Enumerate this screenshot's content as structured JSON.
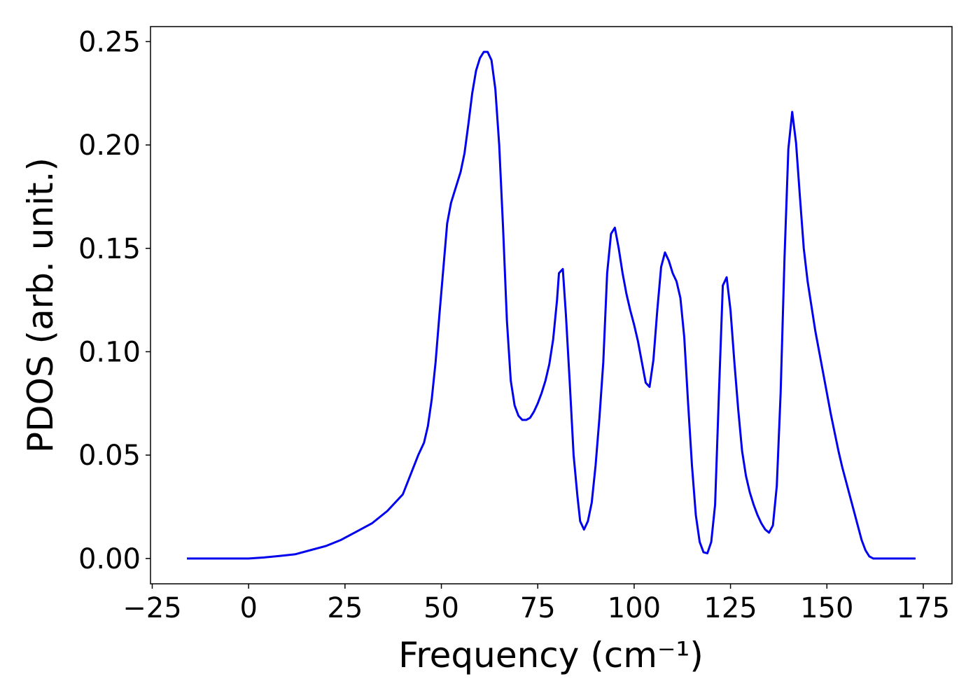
{
  "chart_data": {
    "type": "line",
    "x_label": "Frequency (cm⁻¹)",
    "y_label": "PDOS (arb. unit.)",
    "xlim": [
      -25.45,
      182.45
    ],
    "ylim": [
      -0.01225,
      0.25725
    ],
    "xticks": [
      {
        "value": -25,
        "label": "−25"
      },
      0,
      25,
      50,
      75,
      100,
      125,
      150,
      175
    ],
    "yticks": [
      {
        "value": 0,
        "label": "0.00"
      },
      {
        "value": 0.05,
        "label": "0.05"
      },
      {
        "value": 0.1,
        "label": "0.10"
      },
      {
        "value": 0.15,
        "label": "0.15"
      },
      {
        "value": 0.2,
        "label": "0.20"
      },
      {
        "value": 0.25,
        "label": "0.25"
      }
    ],
    "grid": false,
    "series": [
      {
        "color": "#0000ee",
        "x": [
          -16,
          -10,
          0,
          4,
          8,
          12,
          16,
          20,
          24,
          28,
          32,
          36,
          40,
          44,
          45.5,
          46.5,
          47.5,
          48.5,
          49.5,
          50.5,
          51.5,
          52.5,
          53.5,
          55,
          56,
          57,
          58,
          59,
          60,
          61,
          62,
          63,
          64,
          65,
          66,
          67,
          68,
          69,
          70,
          71,
          72,
          73,
          74,
          75,
          76,
          77,
          78,
          79,
          80,
          80.5,
          81.5,
          82.3,
          83.3,
          84.3,
          85.3,
          86,
          87,
          88,
          89,
          90,
          91,
          92,
          93,
          94,
          95,
          96,
          97,
          98,
          99,
          100,
          101,
          102,
          103,
          104,
          105,
          106,
          107,
          108,
          109,
          110,
          111,
          112,
          113,
          114,
          115,
          116,
          117,
          118,
          119,
          120,
          121,
          122,
          123,
          124,
          125,
          126,
          127,
          128,
          129,
          130,
          131,
          132,
          133,
          134,
          135,
          136,
          137,
          138,
          139,
          140,
          141,
          142,
          143,
          144,
          145,
          146,
          147,
          148,
          149,
          150,
          151,
          152,
          153,
          154,
          155,
          156,
          157,
          158,
          159,
          160,
          161,
          162,
          165,
          170,
          173
        ],
        "values": [
          0,
          0,
          0,
          0.0005,
          0.0012,
          0.002,
          0.004,
          0.006,
          0.009,
          0.013,
          0.017,
          0.023,
          0.031,
          0.05,
          0.056,
          0.064,
          0.077,
          0.095,
          0.118,
          0.14,
          0.162,
          0.172,
          0.178,
          0.187,
          0.196,
          0.21,
          0.225,
          0.236,
          0.242,
          0.245,
          0.245,
          0.241,
          0.227,
          0.2,
          0.16,
          0.115,
          0.086,
          0.074,
          0.069,
          0.067,
          0.067,
          0.068,
          0.071,
          0.075,
          0.08,
          0.086,
          0.094,
          0.106,
          0.125,
          0.138,
          0.14,
          0.118,
          0.085,
          0.05,
          0.03,
          0.018,
          0.014,
          0.018,
          0.027,
          0.045,
          0.068,
          0.095,
          0.138,
          0.157,
          0.16,
          0.15,
          0.138,
          0.128,
          0.12,
          0.113,
          0.105,
          0.095,
          0.085,
          0.083,
          0.096,
          0.12,
          0.141,
          0.148,
          0.144,
          0.138,
          0.134,
          0.126,
          0.107,
          0.075,
          0.045,
          0.021,
          0.008,
          0.003,
          0.0025,
          0.008,
          0.026,
          0.08,
          0.132,
          0.136,
          0.12,
          0.095,
          0.072,
          0.052,
          0.04,
          0.032,
          0.026,
          0.021,
          0.017,
          0.014,
          0.0125,
          0.016,
          0.035,
          0.08,
          0.145,
          0.198,
          0.216,
          0.201,
          0.175,
          0.15,
          0.134,
          0.122,
          0.11,
          0.1,
          0.09,
          0.08,
          0.07,
          0.061,
          0.052,
          0.044,
          0.037,
          0.03,
          0.023,
          0.016,
          0.009,
          0.004,
          0.001,
          0,
          0,
          0,
          0
        ]
      }
    ]
  }
}
